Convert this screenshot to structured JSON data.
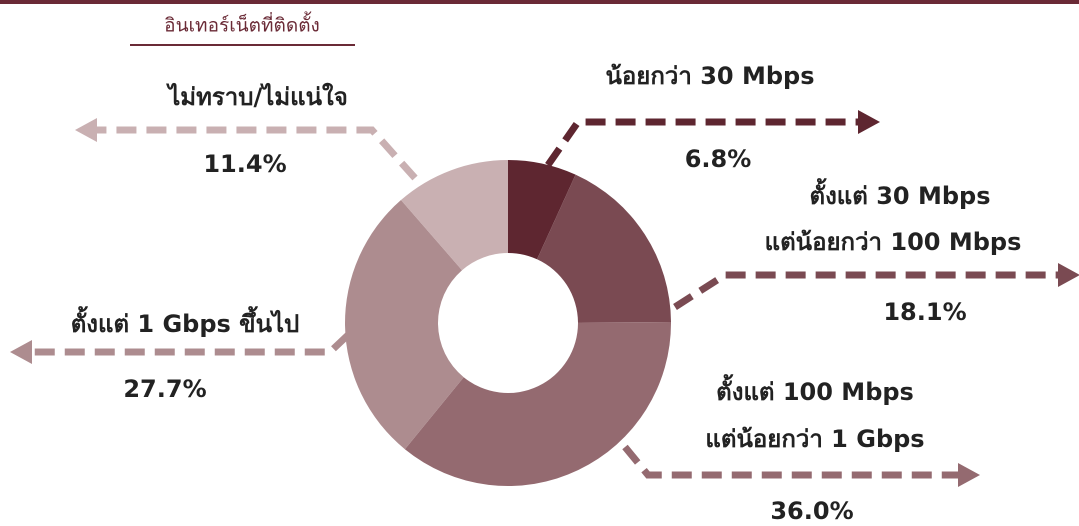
{
  "chart_data": {
    "type": "pie",
    "donut": true,
    "title": "อินเทอร์เน็ตที่ติดตั้ง",
    "categories": [
      [
        "น้อยกว่า 30 Mbps"
      ],
      [
        "ตั้งแต่ 30 Mbps",
        "แต่น้อยกว่า 100 Mbps"
      ],
      [
        "ตั้งแต่ 100 Mbps",
        "แต่น้อยกว่า 1 Gbps"
      ],
      [
        "ตั้งแต่ 1 Gbps ขึ้นไป"
      ],
      [
        "ไม่ทราบ/ไม่แน่ใจ"
      ]
    ],
    "values": [
      6.8,
      18.1,
      36.0,
      27.7,
      11.4
    ],
    "value_labels": [
      "6.8%",
      "18.1%",
      "36.0%",
      "27.7%",
      "11.4%"
    ],
    "colors": [
      "#5e2630",
      "#7a4a52",
      "#946a70",
      "#ad8c8f",
      "#c9b0b2"
    ]
  }
}
